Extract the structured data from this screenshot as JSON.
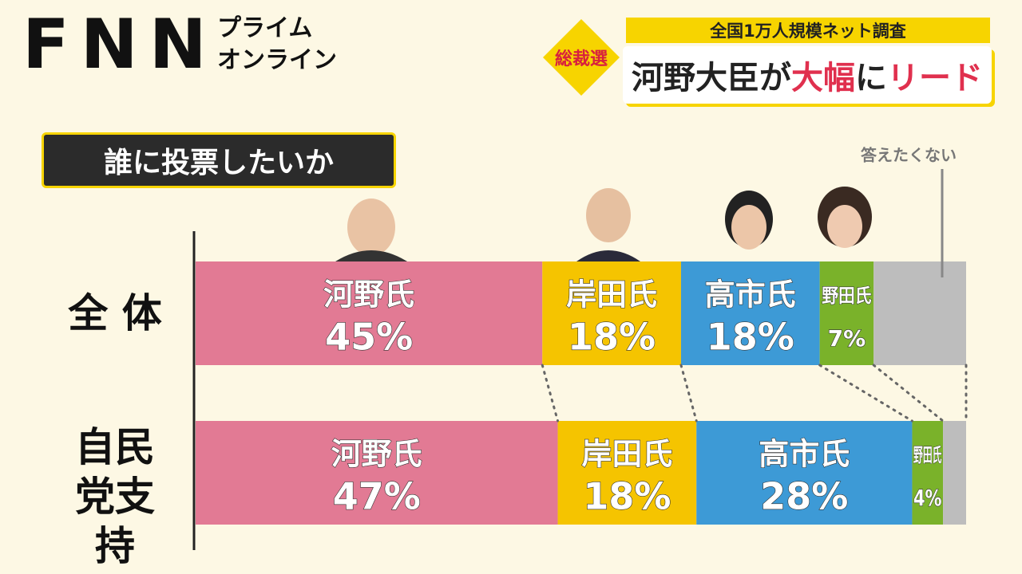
{
  "header": {
    "logo": "FNN",
    "brand_line1": "プライム",
    "brand_line2": "オンライン"
  },
  "banner": {
    "tag": "総裁選",
    "subtitle": "全国1万人規模ネット調査",
    "headline": [
      {
        "text": "河野大臣が",
        "color": "#222222"
      },
      {
        "text": "大幅",
        "color": "#e0304e"
      },
      {
        "text": "に",
        "color": "#222222"
      },
      {
        "text": "リード",
        "color": "#e0304e"
      }
    ]
  },
  "chart_data": {
    "type": "stacked_bar",
    "title": "誰に投票したいか",
    "categories": [
      "全 体",
      "自民党支持"
    ],
    "xlim": [
      0,
      100
    ],
    "series": [
      {
        "name": "河野氏",
        "color": "#e27a94",
        "values": [
          45,
          47
        ],
        "value_labels": [
          "45%",
          "47%"
        ]
      },
      {
        "name": "岸田氏",
        "color": "#f5c400",
        "values": [
          18,
          18
        ],
        "value_labels": [
          "18%",
          "18%"
        ]
      },
      {
        "name": "高市氏",
        "color": "#3d9ad6",
        "values": [
          18,
          28
        ],
        "value_labels": [
          "18%",
          "28%"
        ]
      },
      {
        "name": "野田氏",
        "color": "#7ab22a",
        "values": [
          7,
          4
        ],
        "value_labels": [
          "7%",
          "4%"
        ]
      },
      {
        "name": "答えたくない",
        "color": "#bdbdbd",
        "values": [
          12,
          3
        ]
      }
    ]
  }
}
